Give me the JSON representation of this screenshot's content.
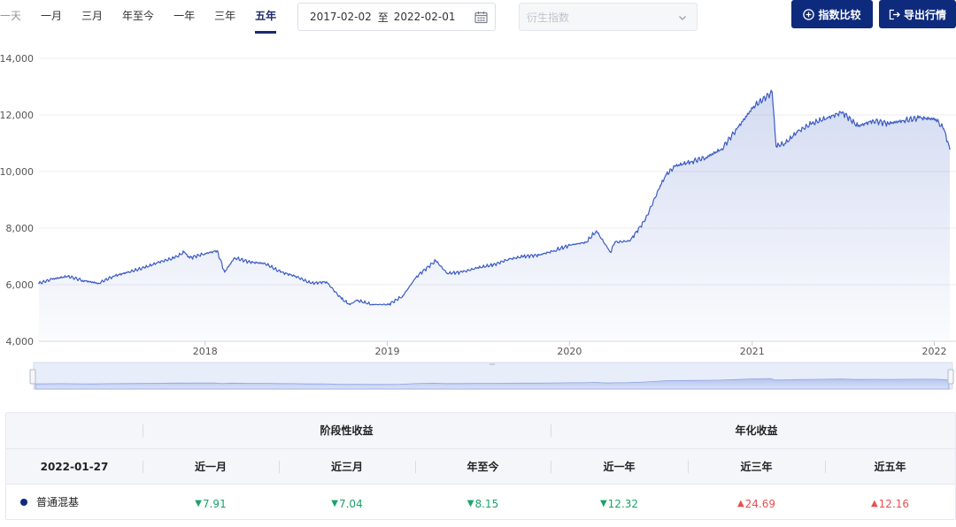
{
  "toolbar": {
    "range_tabs": [
      "一天",
      "一月",
      "三月",
      "年至今",
      "一年",
      "三年",
      "五年"
    ],
    "active_tab": "五年",
    "date_range": {
      "start": "2017-02-02",
      "separator": "至",
      "end": "2022-02-01"
    },
    "derive_select": {
      "placeholder": "衍生指数"
    },
    "compare_button": "指数比较",
    "export_button": "导出行情"
  },
  "colors": {
    "primary": "#0d2a7d",
    "line": "#3b5cc4",
    "down": "#1aa36b",
    "up": "#e84f4f"
  },
  "chart_data": {
    "type": "area",
    "series": [
      {
        "name": "普通混基",
        "x": [
          "2017-02-02",
          "2017-03-01",
          "2017-04-01",
          "2017-05-01",
          "2017-06-01",
          "2017-07-01",
          "2017-08-01",
          "2017-09-01",
          "2017-10-01",
          "2017-11-01",
          "2017-11-20",
          "2017-12-01",
          "2018-01-01",
          "2018-01-25",
          "2018-02-09",
          "2018-03-01",
          "2018-04-01",
          "2018-05-01",
          "2018-06-01",
          "2018-07-01",
          "2018-08-01",
          "2018-09-01",
          "2018-10-01",
          "2018-10-18",
          "2018-11-01",
          "2018-12-01",
          "2019-01-03",
          "2019-02-01",
          "2019-03-01",
          "2019-04-08",
          "2019-05-01",
          "2019-06-01",
          "2019-07-01",
          "2019-08-01",
          "2019-09-01",
          "2019-10-01",
          "2019-11-01",
          "2019-12-01",
          "2020-01-02",
          "2020-02-03",
          "2020-02-24",
          "2020-03-23",
          "2020-04-01",
          "2020-05-01",
          "2020-06-01",
          "2020-07-01",
          "2020-07-13",
          "2020-08-01",
          "2020-09-01",
          "2020-10-01",
          "2020-11-01",
          "2020-12-01",
          "2021-01-04",
          "2021-02-10",
          "2021-02-18",
          "2021-03-09",
          "2021-04-01",
          "2021-05-01",
          "2021-06-01",
          "2021-07-01",
          "2021-08-01",
          "2021-09-01",
          "2021-10-01",
          "2021-11-01",
          "2021-12-01",
          "2022-01-04",
          "2022-01-20",
          "2022-02-01"
        ],
        "y": [
          6050,
          6200,
          6300,
          6150,
          6050,
          6300,
          6450,
          6600,
          6800,
          6950,
          7150,
          6950,
          7100,
          7200,
          6450,
          6950,
          6800,
          6750,
          6450,
          6300,
          6050,
          6100,
          5500,
          5300,
          5450,
          5300,
          5300,
          5600,
          6300,
          6850,
          6400,
          6450,
          6600,
          6700,
          6900,
          7000,
          7050,
          7200,
          7400,
          7500,
          7900,
          7150,
          7500,
          7550,
          8300,
          9500,
          9900,
          10200,
          10350,
          10500,
          10800,
          11500,
          12300,
          12800,
          10900,
          11000,
          11400,
          11700,
          11900,
          12100,
          11600,
          11800,
          11700,
          11800,
          11900,
          11850,
          11500,
          10800
        ]
      }
    ],
    "xtick_labels": [
      "2018",
      "2019",
      "2020",
      "2021",
      "2022"
    ],
    "ytick_labels": [
      "4,000",
      "6,000",
      "8,000",
      "10,000",
      "12,000",
      "14,000"
    ],
    "ylim": [
      4000,
      14000
    ],
    "grid": "horizontal",
    "navigator": true
  },
  "returns_table": {
    "group_headers": {
      "periodic": "阶段性收益",
      "annualized": "年化收益"
    },
    "date": "2022-01-27",
    "columns": [
      "近一月",
      "近三月",
      "年至今",
      "近一年",
      "近三年",
      "近五年"
    ],
    "rows": [
      {
        "name": "普通混基",
        "values": [
          {
            "dir": "down",
            "arrow": "▼",
            "text": "7.91"
          },
          {
            "dir": "down",
            "arrow": "▼",
            "text": "7.04"
          },
          {
            "dir": "down",
            "arrow": "▼",
            "text": "8.15"
          },
          {
            "dir": "down",
            "arrow": "▼",
            "text": "12.32"
          },
          {
            "dir": "up",
            "arrow": "▲",
            "text": "24.69"
          },
          {
            "dir": "up",
            "arrow": "▲",
            "text": "12.16"
          }
        ]
      }
    ]
  }
}
